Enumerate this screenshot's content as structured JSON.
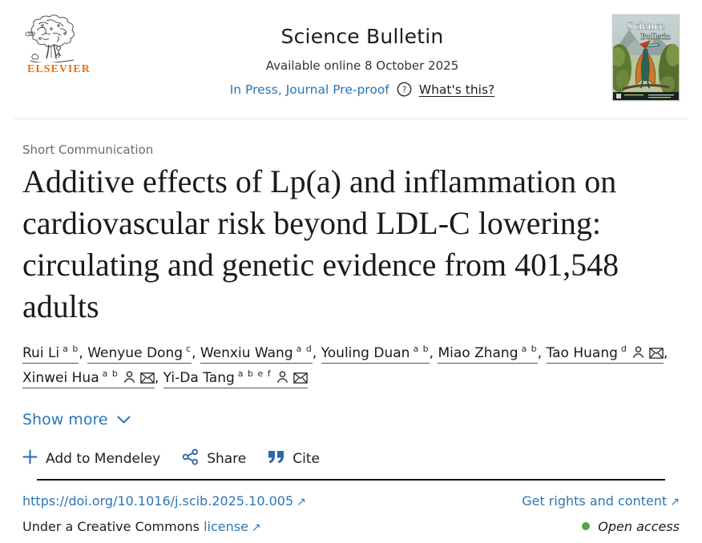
{
  "header": {
    "elsevier_logo_text": "ELSEVIER",
    "journal_title": "Science Bulletin",
    "available_online": "Available online 8 October 2025",
    "in_press_label": "In Press, Journal Pre-proof",
    "whats_this_label": "What's this?",
    "cover": {
      "title_line1": "Science",
      "title_line2": "Bulletin"
    }
  },
  "article": {
    "type_label": "Short Communication",
    "title": "Additive effects of Lp(a) and inflammation on cardiovascular risk beyond LDL-C lowering: circulating and genetic evidence from 401,548 adults",
    "authors": [
      {
        "name": "Rui Li",
        "sup": "a b",
        "person": false,
        "email": false
      },
      {
        "name": "Wenyue Dong",
        "sup": "c",
        "person": false,
        "email": false
      },
      {
        "name": "Wenxiu Wang",
        "sup": "a d",
        "person": false,
        "email": false
      },
      {
        "name": "Youling Duan",
        "sup": "a b",
        "person": false,
        "email": false
      },
      {
        "name": "Miao Zhang",
        "sup": "a b",
        "person": false,
        "email": false
      },
      {
        "name": "Tao Huang",
        "sup": "d",
        "person": true,
        "email": true
      },
      {
        "name": "Xinwei Hua",
        "sup": "a b",
        "person": true,
        "email": true
      },
      {
        "name": "Yi-Da Tang",
        "sup": "a b e f",
        "person": true,
        "email": true
      }
    ],
    "show_more_label": "Show more"
  },
  "actions": {
    "mendeley_label": "Add to Mendeley",
    "share_label": "Share",
    "cite_label": "Cite"
  },
  "footer": {
    "doi_link": "https://doi.org/10.1016/j.scib.2025.10.005",
    "rights_link": "Get rights and content",
    "license_prefix": "Under a Creative Commons",
    "license_link": "license",
    "open_access_label": "Open access"
  },
  "colors": {
    "link_blue": "#2b76b5",
    "icon_blue": "#2c66ad",
    "elsevier_orange": "#e9711c",
    "open_access_green": "#52a552"
  }
}
